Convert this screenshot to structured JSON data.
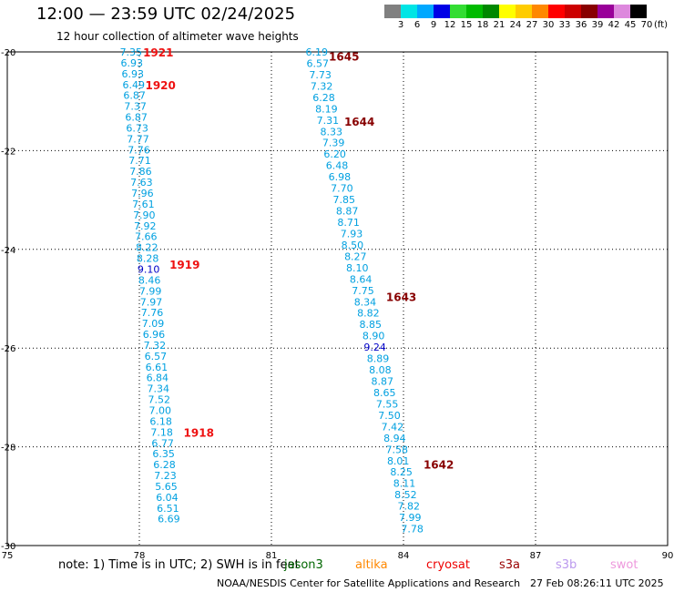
{
  "title": "12:00 — 23:59 UTC 02/24/2025",
  "subtitle": "12 hour collection of altimeter wave heights",
  "color_scale": {
    "labels": [
      "3",
      "6",
      "9",
      "12",
      "15",
      "18",
      "21",
      "24",
      "27",
      "30",
      "33",
      "36",
      "39",
      "42",
      "45",
      "70"
    ],
    "colors": [
      "#808080",
      "#00e5e5",
      "#00a8ff",
      "#0000e6",
      "#33dd33",
      "#00bb00",
      "#008800",
      "#ffff00",
      "#ffcc00",
      "#ff8800",
      "#ff0000",
      "#cc0000",
      "#880000",
      "#990099",
      "#dd88dd",
      "#000000"
    ],
    "unit": "(ft)"
  },
  "axes": {
    "x_ticks": [
      "75",
      "78",
      "81",
      "84",
      "87",
      "90"
    ],
    "y_ticks": [
      "-20",
      "-22",
      "-24",
      "-26",
      "-28",
      "-30"
    ]
  },
  "chart_data": {
    "type": "scatter",
    "xlim": [
      75,
      90
    ],
    "ylim": [
      -30,
      -20
    ],
    "grid": true,
    "label_colors": {
      "1": "#00a0e0",
      "2": "#0000c8"
    },
    "tracks": [
      {
        "points": [
          {
            "lon": 77.81,
            "lat": -20.0,
            "value": "7.35",
            "c": 1
          },
          {
            "lon": 77.83,
            "lat": -20.22,
            "value": "6.93",
            "c": 1
          },
          {
            "lon": 77.85,
            "lat": -20.44,
            "value": "6.93",
            "c": 1
          },
          {
            "lon": 77.87,
            "lat": -20.66,
            "value": "6.49",
            "c": 1
          },
          {
            "lon": 77.89,
            "lat": -20.88,
            "value": "6.87",
            "c": 1
          },
          {
            "lon": 77.91,
            "lat": -21.1,
            "value": "7.37",
            "c": 1
          },
          {
            "lon": 77.93,
            "lat": -21.32,
            "value": "6.87",
            "c": 1
          },
          {
            "lon": 77.95,
            "lat": -21.54,
            "value": "6.73",
            "c": 1
          },
          {
            "lon": 77.97,
            "lat": -21.76,
            "value": "7.77",
            "c": 1
          },
          {
            "lon": 77.99,
            "lat": -21.98,
            "value": "7.76",
            "c": 1
          },
          {
            "lon": 78.01,
            "lat": -22.2,
            "value": "7.71",
            "c": 1
          },
          {
            "lon": 78.03,
            "lat": -22.42,
            "value": "7.86",
            "c": 1
          },
          {
            "lon": 78.05,
            "lat": -22.64,
            "value": "7.63",
            "c": 1
          },
          {
            "lon": 78.07,
            "lat": -22.86,
            "value": "7.96",
            "c": 1
          },
          {
            "lon": 78.09,
            "lat": -23.08,
            "value": "7.61",
            "c": 1
          },
          {
            "lon": 78.11,
            "lat": -23.3,
            "value": "7.90",
            "c": 1
          },
          {
            "lon": 78.13,
            "lat": -23.52,
            "value": "7.92",
            "c": 1
          },
          {
            "lon": 78.15,
            "lat": -23.74,
            "value": "7.66",
            "c": 1
          },
          {
            "lon": 78.17,
            "lat": -23.96,
            "value": "8.22",
            "c": 1
          },
          {
            "lon": 78.19,
            "lat": -24.18,
            "value": "8.28",
            "c": 1
          },
          {
            "lon": 78.21,
            "lat": -24.4,
            "value": "9.10",
            "c": 2
          },
          {
            "lon": 78.23,
            "lat": -24.62,
            "value": "8.46",
            "c": 1
          },
          {
            "lon": 78.25,
            "lat": -24.84,
            "value": "7.99",
            "c": 1
          },
          {
            "lon": 78.27,
            "lat": -25.06,
            "value": "7.97",
            "c": 1
          },
          {
            "lon": 78.29,
            "lat": -25.28,
            "value": "7.76",
            "c": 1
          },
          {
            "lon": 78.31,
            "lat": -25.5,
            "value": "7.09",
            "c": 1
          },
          {
            "lon": 78.33,
            "lat": -25.72,
            "value": "6.96",
            "c": 1
          },
          {
            "lon": 78.35,
            "lat": -25.94,
            "value": "7.32",
            "c": 1
          },
          {
            "lon": 78.37,
            "lat": -26.16,
            "value": "6.57",
            "c": 1
          },
          {
            "lon": 78.39,
            "lat": -26.38,
            "value": "6.61",
            "c": 1
          },
          {
            "lon": 78.41,
            "lat": -26.6,
            "value": "6.84",
            "c": 1
          },
          {
            "lon": 78.43,
            "lat": -26.82,
            "value": "7.34",
            "c": 1
          },
          {
            "lon": 78.45,
            "lat": -27.04,
            "value": "7.52",
            "c": 1
          },
          {
            "lon": 78.47,
            "lat": -27.26,
            "value": "7.00",
            "c": 1
          },
          {
            "lon": 78.49,
            "lat": -27.48,
            "value": "6.18",
            "c": 1
          },
          {
            "lon": 78.51,
            "lat": -27.7,
            "value": "7.18",
            "c": 1
          },
          {
            "lon": 78.53,
            "lat": -27.92,
            "value": "6.77",
            "c": 1
          },
          {
            "lon": 78.55,
            "lat": -28.14,
            "value": "6.35",
            "c": 1
          },
          {
            "lon": 78.57,
            "lat": -28.36,
            "value": "6.28",
            "c": 1
          },
          {
            "lon": 78.59,
            "lat": -28.58,
            "value": "7.23",
            "c": 1
          },
          {
            "lon": 78.61,
            "lat": -28.8,
            "value": "5.65",
            "c": 1
          },
          {
            "lon": 78.63,
            "lat": -29.02,
            "value": "6.04",
            "c": 1
          },
          {
            "lon": 78.65,
            "lat": -29.24,
            "value": "6.51",
            "c": 1
          },
          {
            "lon": 78.67,
            "lat": -29.46,
            "value": "6.69",
            "c": 1
          }
        ],
        "times": [
          {
            "label": "1921",
            "lon": 78.43,
            "lat": -20.0,
            "color": "#ee1111"
          },
          {
            "label": "1920",
            "lon": 78.48,
            "lat": -20.66,
            "color": "#ee1111"
          },
          {
            "label": "1919",
            "lon": 79.03,
            "lat": -24.3,
            "color": "#ee1111"
          },
          {
            "label": "1918",
            "lon": 79.35,
            "lat": -27.7,
            "color": "#ee1111"
          }
        ]
      },
      {
        "points": [
          {
            "lon": 82.03,
            "lat": -20.0,
            "value": "6.19",
            "c": 1
          },
          {
            "lon": 82.05,
            "lat": -20.23,
            "value": "6.57",
            "c": 1
          },
          {
            "lon": 82.11,
            "lat": -20.46,
            "value": "7.73",
            "c": 1
          },
          {
            "lon": 82.14,
            "lat": -20.69,
            "value": "7.32",
            "c": 1
          },
          {
            "lon": 82.19,
            "lat": -20.92,
            "value": "6.28",
            "c": 1
          },
          {
            "lon": 82.25,
            "lat": -21.15,
            "value": "8.19",
            "c": 1
          },
          {
            "lon": 82.28,
            "lat": -21.38,
            "value": "7.31",
            "c": 1
          },
          {
            "lon": 82.36,
            "lat": -21.61,
            "value": "8.33",
            "c": 1
          },
          {
            "lon": 82.41,
            "lat": -21.84,
            "value": "7.39",
            "c": 1
          },
          {
            "lon": 82.44,
            "lat": -22.07,
            "value": "6.20",
            "c": 1
          },
          {
            "lon": 82.49,
            "lat": -22.3,
            "value": "6.48",
            "c": 1
          },
          {
            "lon": 82.55,
            "lat": -22.53,
            "value": "6.98",
            "c": 1
          },
          {
            "lon": 82.6,
            "lat": -22.76,
            "value": "7.70",
            "c": 1
          },
          {
            "lon": 82.65,
            "lat": -22.99,
            "value": "7.85",
            "c": 1
          },
          {
            "lon": 82.72,
            "lat": -23.22,
            "value": "8.87",
            "c": 1
          },
          {
            "lon": 82.75,
            "lat": -23.45,
            "value": "8.71",
            "c": 1
          },
          {
            "lon": 82.82,
            "lat": -23.68,
            "value": "7.93",
            "c": 1
          },
          {
            "lon": 82.84,
            "lat": -23.91,
            "value": "8.50",
            "c": 1
          },
          {
            "lon": 82.91,
            "lat": -24.14,
            "value": "8.27",
            "c": 1
          },
          {
            "lon": 82.95,
            "lat": -24.37,
            "value": "8.10",
            "c": 1
          },
          {
            "lon": 83.03,
            "lat": -24.6,
            "value": "8.64",
            "c": 1
          },
          {
            "lon": 83.08,
            "lat": -24.83,
            "value": "7.75",
            "c": 1
          },
          {
            "lon": 83.13,
            "lat": -25.06,
            "value": "8.34",
            "c": 1
          },
          {
            "lon": 83.2,
            "lat": -25.29,
            "value": "8.82",
            "c": 1
          },
          {
            "lon": 83.25,
            "lat": -25.52,
            "value": "8.85",
            "c": 1
          },
          {
            "lon": 83.32,
            "lat": -25.75,
            "value": "8.90",
            "c": 1
          },
          {
            "lon": 83.35,
            "lat": -25.98,
            "value": "9.24",
            "c": 2
          },
          {
            "lon": 83.42,
            "lat": -26.21,
            "value": "8.89",
            "c": 1
          },
          {
            "lon": 83.47,
            "lat": -26.44,
            "value": "8.08",
            "c": 1
          },
          {
            "lon": 83.52,
            "lat": -26.67,
            "value": "8.87",
            "c": 1
          },
          {
            "lon": 83.57,
            "lat": -26.9,
            "value": "8.65",
            "c": 1
          },
          {
            "lon": 83.63,
            "lat": -27.13,
            "value": "7.55",
            "c": 1
          },
          {
            "lon": 83.68,
            "lat": -27.36,
            "value": "7.50",
            "c": 1
          },
          {
            "lon": 83.75,
            "lat": -27.59,
            "value": "7.42",
            "c": 1
          },
          {
            "lon": 83.8,
            "lat": -27.82,
            "value": "8.94",
            "c": 1
          },
          {
            "lon": 83.85,
            "lat": -28.05,
            "value": "7.58",
            "c": 1
          },
          {
            "lon": 83.88,
            "lat": -28.28,
            "value": "8.01",
            "c": 1
          },
          {
            "lon": 83.95,
            "lat": -28.51,
            "value": "8.25",
            "c": 1
          },
          {
            "lon": 84.02,
            "lat": -28.74,
            "value": "8.11",
            "c": 1
          },
          {
            "lon": 84.05,
            "lat": -28.97,
            "value": "8.52",
            "c": 1
          },
          {
            "lon": 84.12,
            "lat": -29.2,
            "value": "7.82",
            "c": 1
          },
          {
            "lon": 84.15,
            "lat": -29.43,
            "value": "7.99",
            "c": 1
          },
          {
            "lon": 84.2,
            "lat": -29.66,
            "value": "7.78",
            "c": 1
          }
        ],
        "times": [
          {
            "label": "1645",
            "lon": 82.65,
            "lat": -20.08,
            "color": "#880000"
          },
          {
            "label": "1644",
            "lon": 83.0,
            "lat": -21.4,
            "color": "#880000"
          },
          {
            "label": "1643",
            "lon": 83.95,
            "lat": -24.95,
            "color": "#880000"
          },
          {
            "lon": 84.8,
            "lat": -28.35,
            "label": "1642",
            "color": "#880000"
          }
        ]
      }
    ]
  },
  "footer": {
    "note": "note:  1) Time is in UTC; 2) SWH is in feet",
    "satellites": [
      {
        "name": "jason3",
        "color": "#006600"
      },
      {
        "name": "altika",
        "color": "#ff8800"
      },
      {
        "name": "cryosat",
        "color": "#ee0000"
      },
      {
        "name": "s3a",
        "color": "#990000"
      },
      {
        "name": "s3b",
        "color": "#bb99ee"
      },
      {
        "name": "swot",
        "color": "#ee99dd"
      }
    ],
    "credit": "NOAA/NESDIS Center for Satellite Applications and Research",
    "timestamp": "27 Feb 08:26:11 UTC 2025"
  }
}
